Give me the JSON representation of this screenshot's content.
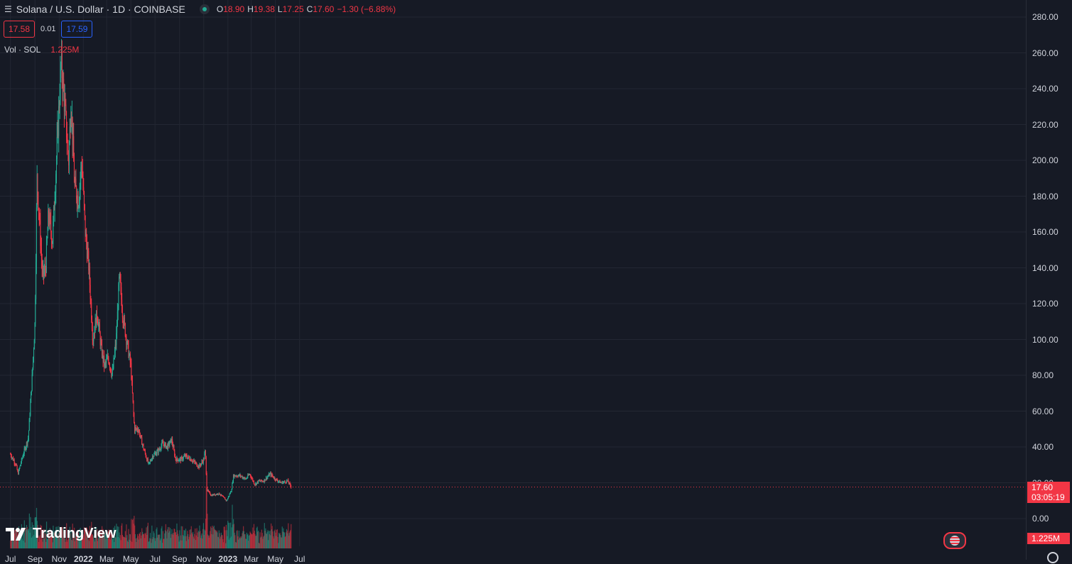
{
  "header": {
    "menu_icon": "hamburger-icon",
    "symbol_title": "Solana / U.S. Dollar · 1D · COINBASE",
    "market_status_icon": "market-open-dot-icon",
    "ohlc": {
      "o_label": "O",
      "o": "18.90",
      "h_label": "H",
      "h": "19.38",
      "l_label": "L",
      "l": "17.25",
      "c_label": "C",
      "c": "17.60",
      "change": "−1.30 (−6.88%)"
    },
    "sell_price": "17.58",
    "spread": "0.01",
    "buy_price": "17.59",
    "volume_label": "Vol · SOL",
    "volume_value": "1.225M"
  },
  "price_axis": {
    "ticks": [
      "280.00",
      "260.00",
      "240.00",
      "220.00",
      "200.00",
      "180.00",
      "160.00",
      "140.00",
      "120.00",
      "100.00",
      "80.00",
      "60.00",
      "40.00",
      "20.00",
      "0.00"
    ],
    "last_price_tag": "17.60",
    "countdown": "03:05:19",
    "volume_tag": "1.225M"
  },
  "time_axis": {
    "labels": [
      "Jul",
      "Sep",
      "Nov",
      "2022",
      "Mar",
      "May",
      "Jul",
      "Sep",
      "Nov",
      "2023",
      "Mar",
      "May",
      "Jul"
    ]
  },
  "branding": {
    "logo_icon": "tradingview-logo-icon",
    "logo_text": "TradingView"
  },
  "colors": {
    "background": "#161a25",
    "up": "#22ab94",
    "down": "#f23645",
    "grid": "#232733",
    "accent": "#2962ff"
  },
  "chart_data": {
    "type": "candlestick",
    "symbol": "SOL/USD",
    "interval": "1D",
    "ylim": [
      0,
      280
    ],
    "grid": true,
    "last_price": 17.6,
    "close_series": [
      {
        "date": "2021-07-01",
        "close": 36
      },
      {
        "date": "2021-07-15",
        "close": 30
      },
      {
        "date": "2021-07-20",
        "close": 25
      },
      {
        "date": "2021-08-01",
        "close": 35
      },
      {
        "date": "2021-08-15",
        "close": 45
      },
      {
        "date": "2021-08-25",
        "close": 80
      },
      {
        "date": "2021-09-01",
        "close": 110
      },
      {
        "date": "2021-09-06",
        "close": 190
      },
      {
        "date": "2021-09-10",
        "close": 175
      },
      {
        "date": "2021-09-20",
        "close": 135
      },
      {
        "date": "2021-09-28",
        "close": 140
      },
      {
        "date": "2021-10-05",
        "close": 170
      },
      {
        "date": "2021-10-15",
        "close": 155
      },
      {
        "date": "2021-10-25",
        "close": 200
      },
      {
        "date": "2021-11-06",
        "close": 255
      },
      {
        "date": "2021-11-15",
        "close": 230
      },
      {
        "date": "2021-11-25",
        "close": 200
      },
      {
        "date": "2021-12-01",
        "close": 235
      },
      {
        "date": "2021-12-10",
        "close": 185
      },
      {
        "date": "2021-12-20",
        "close": 178
      },
      {
        "date": "2021-12-28",
        "close": 200
      },
      {
        "date": "2022-01-06",
        "close": 160
      },
      {
        "date": "2022-01-15",
        "close": 140
      },
      {
        "date": "2022-01-25",
        "close": 100
      },
      {
        "date": "2022-02-05",
        "close": 115
      },
      {
        "date": "2022-02-15",
        "close": 95
      },
      {
        "date": "2022-02-24",
        "close": 85
      },
      {
        "date": "2022-03-05",
        "close": 90
      },
      {
        "date": "2022-03-15",
        "close": 80
      },
      {
        "date": "2022-03-25",
        "close": 100
      },
      {
        "date": "2022-04-02",
        "close": 135
      },
      {
        "date": "2022-04-10",
        "close": 115
      },
      {
        "date": "2022-04-20",
        "close": 100
      },
      {
        "date": "2022-05-01",
        "close": 85
      },
      {
        "date": "2022-05-10",
        "close": 50
      },
      {
        "date": "2022-05-20",
        "close": 50
      },
      {
        "date": "2022-06-01",
        "close": 40
      },
      {
        "date": "2022-06-15",
        "close": 30
      },
      {
        "date": "2022-06-25",
        "close": 35
      },
      {
        "date": "2022-07-10",
        "close": 38
      },
      {
        "date": "2022-07-20",
        "close": 42
      },
      {
        "date": "2022-08-01",
        "close": 40
      },
      {
        "date": "2022-08-12",
        "close": 44
      },
      {
        "date": "2022-08-22",
        "close": 33
      },
      {
        "date": "2022-09-05",
        "close": 33
      },
      {
        "date": "2022-09-15",
        "close": 35
      },
      {
        "date": "2022-10-01",
        "close": 33
      },
      {
        "date": "2022-10-20",
        "close": 29
      },
      {
        "date": "2022-11-01",
        "close": 33
      },
      {
        "date": "2022-11-05",
        "close": 38
      },
      {
        "date": "2022-11-09",
        "close": 16
      },
      {
        "date": "2022-11-20",
        "close": 13
      },
      {
        "date": "2022-12-10",
        "close": 14
      },
      {
        "date": "2022-12-29",
        "close": 10
      },
      {
        "date": "2023-01-10",
        "close": 16
      },
      {
        "date": "2023-01-15",
        "close": 24
      },
      {
        "date": "2023-02-01",
        "close": 24
      },
      {
        "date": "2023-02-15",
        "close": 22
      },
      {
        "date": "2023-02-25",
        "close": 25
      },
      {
        "date": "2023-03-10",
        "close": 19
      },
      {
        "date": "2023-03-20",
        "close": 21
      },
      {
        "date": "2023-04-01",
        "close": 21
      },
      {
        "date": "2023-04-18",
        "close": 25
      },
      {
        "date": "2023-05-01",
        "close": 22
      },
      {
        "date": "2023-05-15",
        "close": 20
      },
      {
        "date": "2023-06-01",
        "close": 21
      },
      {
        "date": "2023-06-10",
        "close": 17.6
      }
    ]
  }
}
